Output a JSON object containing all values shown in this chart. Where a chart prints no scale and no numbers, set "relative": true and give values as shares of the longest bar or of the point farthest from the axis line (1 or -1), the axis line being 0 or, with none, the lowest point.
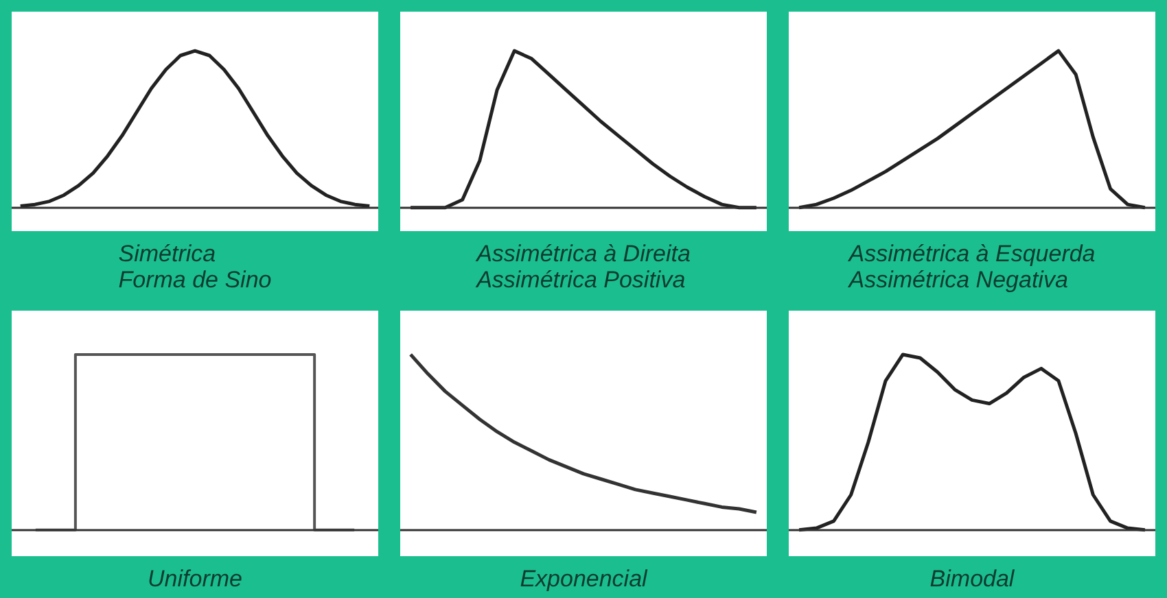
{
  "chart_data": [
    {
      "type": "line",
      "title": "Simétrica\nForma de Sino",
      "relative": true,
      "categories": [
        null,
        null,
        null,
        null,
        null,
        null,
        null,
        null,
        null,
        null,
        null,
        null,
        null,
        null,
        null,
        null,
        null,
        null,
        null,
        null,
        null,
        null,
        null,
        null,
        null
      ],
      "series": [
        {
          "color": "#222222",
          "values": [
            0.01,
            0.02,
            0.04,
            0.08,
            0.14,
            0.22,
            0.33,
            0.46,
            0.61,
            0.76,
            0.88,
            0.97,
            1,
            0.97,
            0.88,
            0.76,
            0.61,
            0.46,
            0.33,
            0.22,
            0.14,
            0.08,
            0.04,
            0.02,
            0.01
          ]
        }
      ]
    },
    {
      "type": "line",
      "title": "Assimétrica à Direita\nAssimétrica Positiva",
      "relative": true,
      "categories": [
        null,
        null,
        null,
        null,
        null,
        null,
        null,
        null,
        null,
        null,
        null,
        null,
        null,
        null,
        null,
        null,
        null,
        null,
        null,
        null,
        null
      ],
      "series": [
        {
          "color": "#222222",
          "values": [
            0,
            0,
            0,
            0.05,
            0.3,
            0.75,
            1,
            0.95,
            0.85,
            0.75,
            0.65,
            0.55,
            0.46,
            0.37,
            0.28,
            0.2,
            0.13,
            0.07,
            0.02,
            0,
            0
          ]
        }
      ]
    },
    {
      "type": "line",
      "title": "Assimétrica à Esquerda\nAssimétrica Negativa",
      "relative": true,
      "categories": [
        null,
        null,
        null,
        null,
        null,
        null,
        null,
        null,
        null,
        null,
        null,
        null,
        null,
        null,
        null,
        null,
        null,
        null,
        null,
        null,
        null
      ],
      "series": [
        {
          "color": "#222222",
          "values": [
            0,
            0.02,
            0.06,
            0.11,
            0.17,
            0.23,
            0.3,
            0.37,
            0.44,
            0.52,
            0.6,
            0.68,
            0.76,
            0.84,
            0.92,
            1,
            0.85,
            0.45,
            0.12,
            0.02,
            0
          ]
        }
      ]
    },
    {
      "type": "step",
      "title": "Uniforme",
      "relative": true,
      "categories": [
        null,
        null,
        null,
        null,
        null,
        null,
        null,
        null,
        null
      ],
      "series": [
        {
          "color": "#555555",
          "values": [
            0,
            1,
            1,
            1,
            1,
            1,
            1,
            0,
            0
          ]
        }
      ]
    },
    {
      "type": "line",
      "title": "Exponencial",
      "relative": true,
      "categories": [
        null,
        null,
        null,
        null,
        null,
        null,
        null,
        null,
        null,
        null,
        null,
        null,
        null,
        null,
        null,
        null,
        null,
        null,
        null,
        null,
        null
      ],
      "series": [
        {
          "color": "#333333",
          "values": [
            1,
            0.89,
            0.79,
            0.71,
            0.63,
            0.56,
            0.5,
            0.45,
            0.4,
            0.36,
            0.32,
            0.29,
            0.26,
            0.23,
            0.21,
            0.19,
            0.17,
            0.15,
            0.13,
            0.12,
            0.1
          ]
        }
      ]
    },
    {
      "type": "line",
      "title": "Bimodal",
      "relative": true,
      "categories": [
        null,
        null,
        null,
        null,
        null,
        null,
        null,
        null,
        null,
        null,
        null,
        null,
        null,
        null,
        null,
        null,
        null,
        null,
        null,
        null,
        null
      ],
      "series": [
        {
          "color": "#222222",
          "values": [
            0,
            0.01,
            0.05,
            0.2,
            0.5,
            0.85,
            1,
            0.98,
            0.9,
            0.8,
            0.74,
            0.72,
            0.78,
            0.87,
            0.92,
            0.85,
            0.55,
            0.2,
            0.05,
            0.01,
            0
          ]
        }
      ]
    }
  ]
}
